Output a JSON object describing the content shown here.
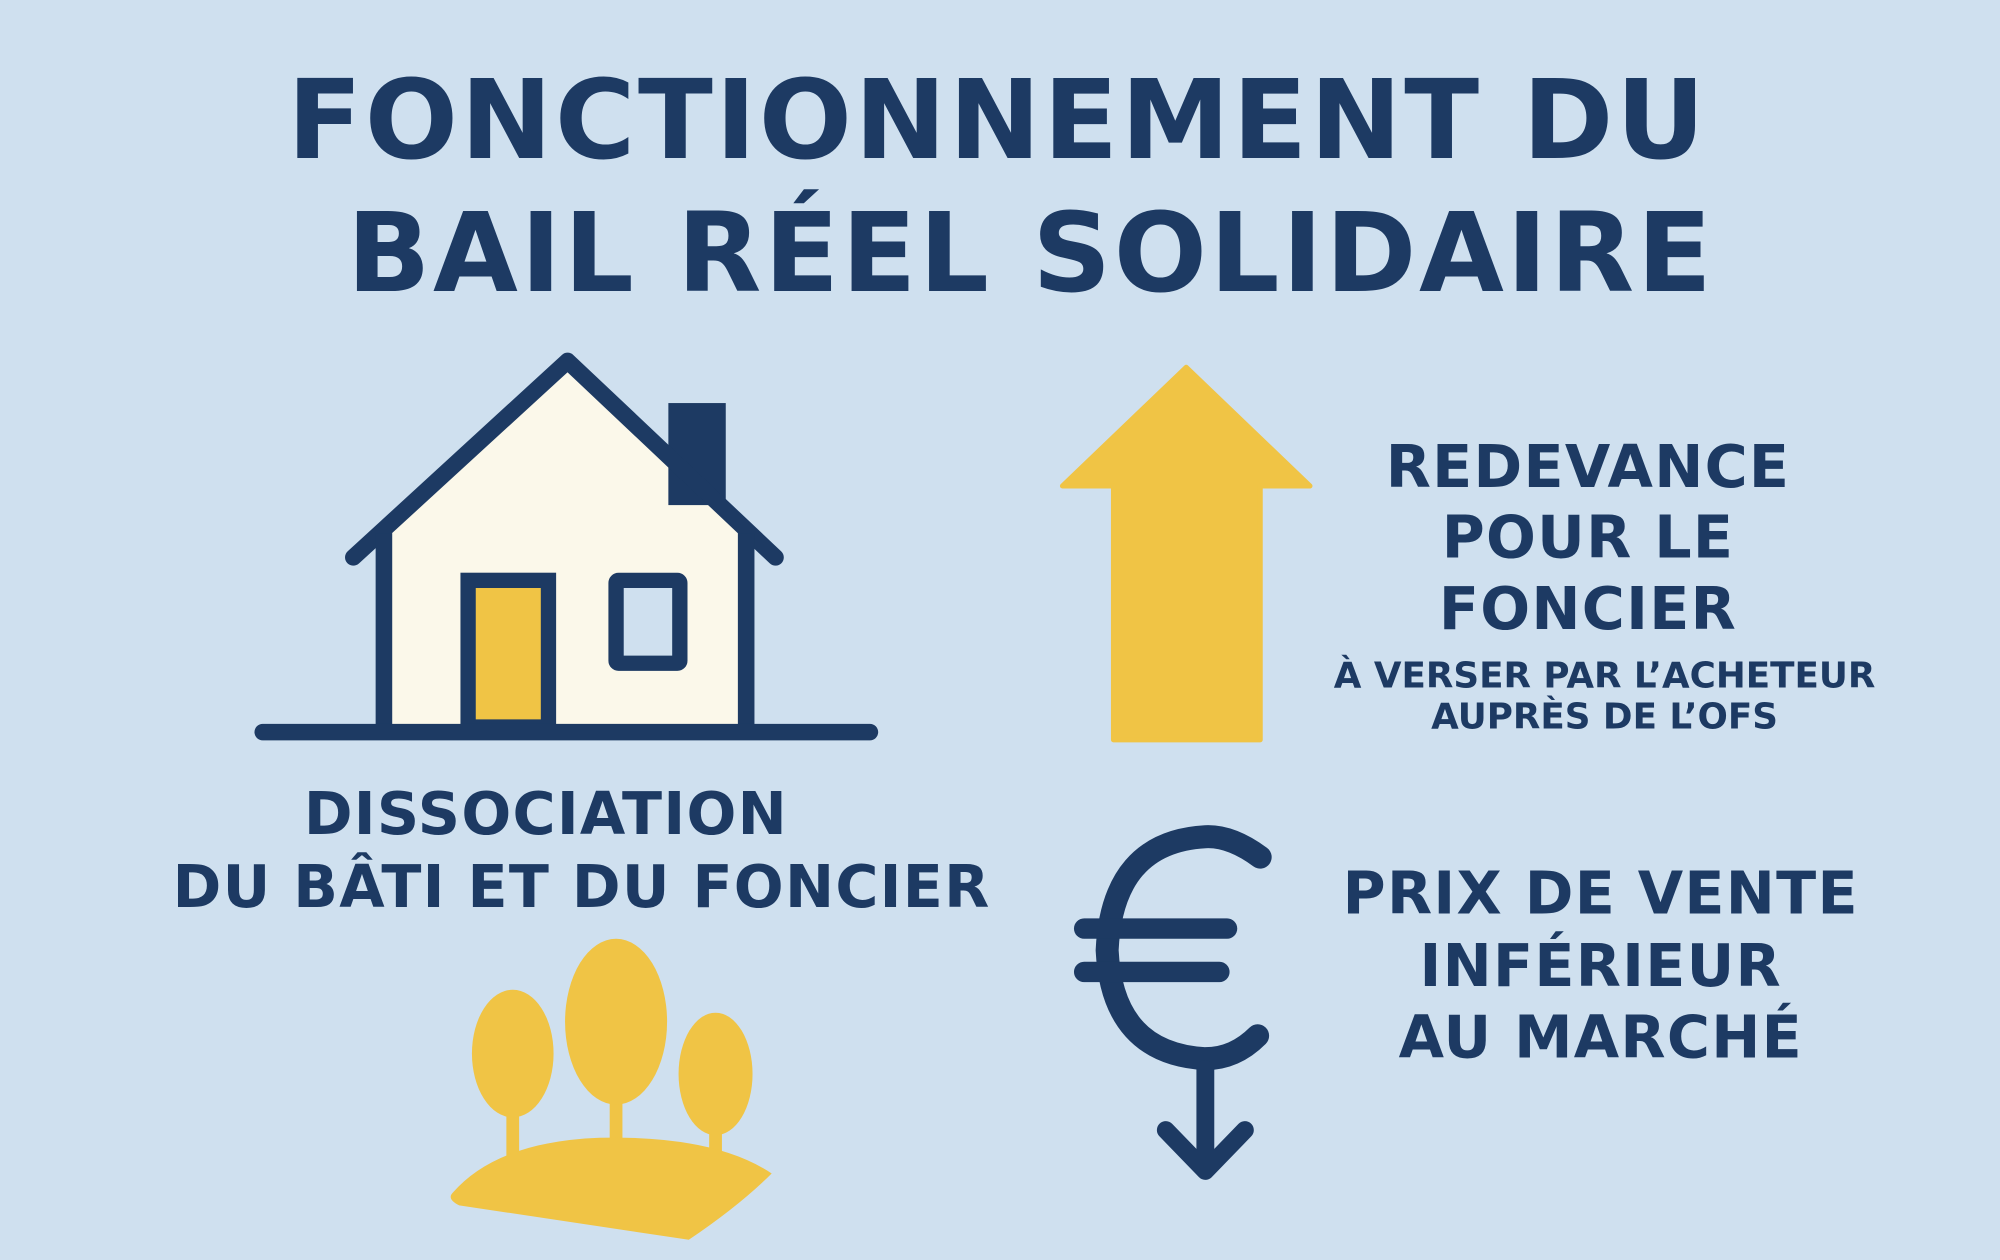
{
  "title": {
    "line1": "FONCTIONNEMENT DU",
    "line2": "BAIL RÉEL SOLIDAIRE"
  },
  "dissociation": {
    "line1": "DISSOCIATION",
    "line2": "DU BÂTI ET DU FONCIER"
  },
  "redevance": {
    "line1": "REDEVANCE",
    "line2": "POUR LE",
    "line3": "FONCIER",
    "sub1": "À VERSER PAR L’ACHETEUR",
    "sub2": "AUPRÈS DE L’OFS"
  },
  "prix": {
    "line1": "PRIX DE VENTE",
    "line2": "INFÉRIEUR",
    "line3": "AU MARCHÉ"
  },
  "icons": [
    "house-icon",
    "trees-icon",
    "up-arrow-icon",
    "euro-down-icon"
  ],
  "colors": {
    "background": "#cfe0ef",
    "navy": "#1d3a63",
    "yellow": "#f0c445",
    "cream": "#fbf8ea"
  }
}
